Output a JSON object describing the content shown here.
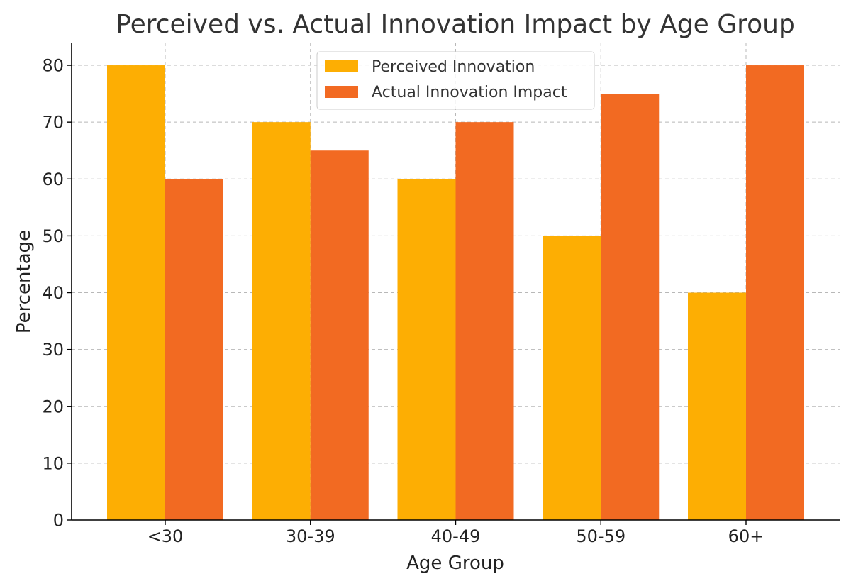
{
  "chart_data": {
    "type": "bar",
    "title": "Perceived vs. Actual Innovation Impact by Age Group",
    "xlabel": "Age Group",
    "ylabel": "Percentage",
    "categories": [
      "<30",
      "30-39",
      "40-49",
      "50-59",
      "60+"
    ],
    "series": [
      {
        "name": "Perceived Innovation",
        "values": [
          80,
          70,
          60,
          50,
          40
        ],
        "color": "#FDAE03"
      },
      {
        "name": "Actual Innovation Impact",
        "values": [
          60,
          65,
          70,
          75,
          80
        ],
        "color": "#F26A22"
      }
    ],
    "ylim": [
      0,
      84
    ],
    "yticks": [
      0,
      10,
      20,
      30,
      40,
      50,
      60,
      70,
      80
    ],
    "grid": true,
    "legend_position": "top-center"
  }
}
